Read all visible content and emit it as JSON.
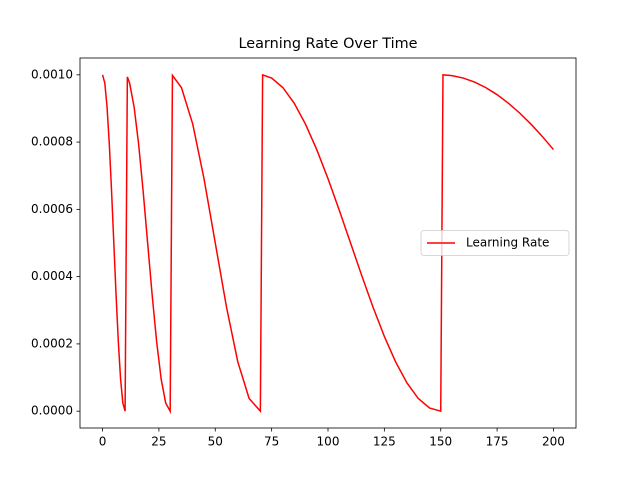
{
  "chart_data": {
    "type": "line",
    "title": "Learning Rate Over Time",
    "x": [
      0,
      1,
      2,
      3,
      4,
      5,
      6,
      7,
      8,
      9,
      10,
      11,
      12,
      14,
      16,
      18,
      20,
      22,
      24,
      26,
      28,
      30,
      31,
      35,
      40,
      45,
      50,
      55,
      60,
      65,
      70,
      71,
      75,
      80,
      85,
      90,
      95,
      100,
      105,
      110,
      115,
      120,
      125,
      130,
      135,
      140,
      145,
      150,
      151,
      155,
      160,
      165,
      170,
      175,
      180,
      185,
      190,
      195,
      200
    ],
    "series": [
      {
        "name": "Learning Rate",
        "color": "#ff0000",
        "values": [
          0.001,
          0.00097553,
          0.00090451,
          0.00079389,
          0.00065451,
          0.0005,
          0.00034549,
          0.00020611,
          9.549e-05,
          2.447e-05,
          0,
          0.00099384,
          0.00097553,
          0.00090451,
          0.00079389,
          0.00065451,
          0.0005,
          0.00034549,
          0.00020611,
          9.549e-05,
          2.447e-05,
          0,
          0.00099846,
          0.00096194,
          0.00085355,
          0.00069134,
          0.0005,
          0.00030866,
          0.00014645,
          3.806e-05,
          0,
          0.00099962,
          0.00099039,
          0.00096194,
          0.00091573,
          0.00085355,
          0.00077779,
          0.00069134,
          0.00059755,
          0.0005,
          0.00040245,
          0.00030866,
          0.00022221,
          0.00014645,
          8.427e-05,
          3.806e-05,
          9.61e-06,
          0,
          0.0009999,
          0.00099759,
          0.00099039,
          0.00097847,
          0.00096194,
          0.00094096,
          0.00091573,
          0.00088651,
          0.00085355,
          0.0008172,
          0.00077779
        ]
      }
    ],
    "xlim": [
      -10,
      210
    ],
    "xticks": [
      0,
      25,
      50,
      75,
      100,
      125,
      150,
      175,
      200
    ],
    "ylim": [
      -5e-05,
      0.00105
    ],
    "yticks": [
      {
        "value": 0,
        "label": "0.0000"
      },
      {
        "value": 0.0002,
        "label": "0.0002"
      },
      {
        "value": 0.0004,
        "label": "0.0004"
      },
      {
        "value": 0.0006,
        "label": "0.0006"
      },
      {
        "value": 0.0008,
        "label": "0.0008"
      },
      {
        "value": 0.001,
        "label": "0.0010"
      }
    ],
    "legend": "center right"
  }
}
